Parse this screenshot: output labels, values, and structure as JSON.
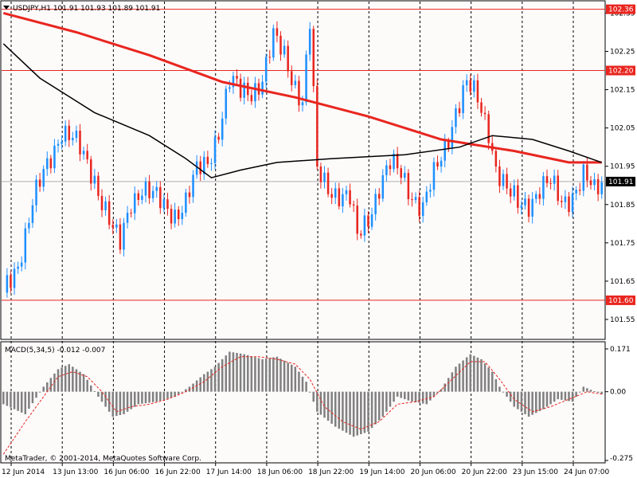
{
  "header": {
    "symbol_line": "USDJPY,H1  101.91 101.93 101.89 101.91"
  },
  "macd": {
    "label": "MACD(5,34,5) -0.012 -0.007",
    "scale": [
      "0.171",
      "0.00",
      "-0.275"
    ]
  },
  "copyright": "MetaTrader, © 2001-2014, MetaQuotes Software Corp.",
  "colors": {
    "background": "#fdfafa",
    "bull_candle": "#1e90ff",
    "bear_candle": "#e8261f",
    "ma_slow": "#e8261f",
    "ma_fast": "#000000",
    "level_line": "#e8261f",
    "histogram": "#808080",
    "signal": "#e8261f"
  },
  "chart_data": {
    "type": "candlestick",
    "symbol": "USDJPY",
    "timeframe": "H1",
    "price_axis": [
      "102.35",
      "102.25",
      "102.15",
      "102.05",
      "101.95",
      "101.85",
      "101.75",
      "101.65",
      "101.55"
    ],
    "price_range": [
      101.5,
      102.38
    ],
    "current_price": "101.91",
    "levels": [
      {
        "label": "102.36",
        "price": 102.36
      },
      {
        "label": "102.20",
        "price": 102.2
      },
      {
        "label": "101.60",
        "price": 101.6
      }
    ],
    "x_labels": [
      "12 Jun 2014",
      "13 Jun 13:00",
      "16 Jun 06:00",
      "16 Jun 22:00",
      "17 Jun 14:00",
      "18 Jun 06:00",
      "18 Jun 22:00",
      "19 Jun 14:00",
      "20 Jun 06:00",
      "20 Jun 22:00",
      "23 Jun 15:00",
      "24 Jun 07:00"
    ],
    "close_path": [
      [
        0,
        101.62
      ],
      [
        4,
        101.7
      ],
      [
        8,
        101.85
      ],
      [
        12,
        101.95
      ],
      [
        16,
        102.05
      ],
      [
        19,
        102.02
      ],
      [
        22,
        101.97
      ],
      [
        25,
        101.92
      ],
      [
        28,
        101.84
      ],
      [
        30,
        101.78
      ],
      [
        32,
        101.74
      ],
      [
        35,
        101.86
      ],
      [
        38,
        101.9
      ],
      [
        41,
        101.87
      ],
      [
        44,
        101.84
      ],
      [
        47,
        101.83
      ],
      [
        50,
        101.86
      ],
      [
        53,
        101.93
      ],
      [
        56,
        101.96
      ],
      [
        59,
        102.05
      ],
      [
        62,
        102.17
      ],
      [
        65,
        102.14
      ],
      [
        68,
        102.15
      ],
      [
        71,
        102.18
      ],
      [
        74,
        102.28
      ],
      [
        77,
        102.24
      ],
      [
        79,
        102.19
      ],
      [
        82,
        102.12
      ],
      [
        84,
        102.32
      ],
      [
        86,
        101.93
      ],
      [
        89,
        101.9
      ],
      [
        92,
        101.88
      ],
      [
        95,
        101.86
      ],
      [
        97,
        101.76
      ],
      [
        100,
        101.82
      ],
      [
        103,
        101.9
      ],
      [
        106,
        101.95
      ],
      [
        109,
        101.93
      ],
      [
        112,
        101.88
      ],
      [
        115,
        101.84
      ],
      [
        118,
        101.92
      ],
      [
        121,
        102.0
      ],
      [
        124,
        102.1
      ],
      [
        127,
        102.16
      ],
      [
        130,
        102.12
      ],
      [
        133,
        102.05
      ],
      [
        135,
        101.95
      ],
      [
        138,
        101.88
      ],
      [
        141,
        101.85
      ],
      [
        144,
        101.86
      ],
      [
        147,
        101.89
      ],
      [
        150,
        101.9
      ],
      [
        153,
        101.86
      ],
      [
        156,
        101.88
      ],
      [
        159,
        101.92
      ],
      [
        162,
        101.88
      ],
      [
        164,
        101.91
      ]
    ],
    "ma_slow_path": [
      [
        0,
        102.35
      ],
      [
        20,
        102.3
      ],
      [
        40,
        102.24
      ],
      [
        60,
        102.17
      ],
      [
        80,
        102.13
      ],
      [
        100,
        102.08
      ],
      [
        120,
        102.02
      ],
      [
        140,
        101.99
      ],
      [
        155,
        101.96
      ],
      [
        164,
        101.96
      ]
    ],
    "ma_fast_path": [
      [
        0,
        102.27
      ],
      [
        10,
        102.18
      ],
      [
        25,
        102.09
      ],
      [
        40,
        102.03
      ],
      [
        50,
        101.97
      ],
      [
        57,
        101.92
      ],
      [
        65,
        101.94
      ],
      [
        75,
        101.96
      ],
      [
        90,
        101.97
      ],
      [
        110,
        101.98
      ],
      [
        125,
        102.0
      ],
      [
        134,
        102.03
      ],
      [
        145,
        102.02
      ],
      [
        155,
        101.99
      ],
      [
        164,
        101.96
      ]
    ],
    "macd_range": [
      -0.275,
      0.171
    ],
    "macd_hist": [
      [
        0,
        -0.05
      ],
      [
        6,
        -0.09
      ],
      [
        11,
        0.02
      ],
      [
        15,
        0.09
      ],
      [
        18,
        0.11
      ],
      [
        22,
        0.07
      ],
      [
        26,
        -0.02
      ],
      [
        30,
        -0.1
      ],
      [
        33,
        -0.09
      ],
      [
        37,
        -0.05
      ],
      [
        42,
        -0.04
      ],
      [
        47,
        -0.02
      ],
      [
        51,
        0.02
      ],
      [
        55,
        0.07
      ],
      [
        58,
        0.1
      ],
      [
        62,
        0.16
      ],
      [
        66,
        0.15
      ],
      [
        71,
        0.13
      ],
      [
        75,
        0.14
      ],
      [
        80,
        0.1
      ],
      [
        83,
        0.04
      ],
      [
        86,
        -0.08
      ],
      [
        91,
        -0.14
      ],
      [
        96,
        -0.18
      ],
      [
        100,
        -0.16
      ],
      [
        104,
        -0.1
      ],
      [
        108,
        -0.02
      ],
      [
        112,
        -0.04
      ],
      [
        116,
        -0.05
      ],
      [
        120,
        0.01
      ],
      [
        124,
        0.1
      ],
      [
        128,
        0.15
      ],
      [
        131,
        0.13
      ],
      [
        134,
        0.08
      ],
      [
        136,
        0.02
      ],
      [
        140,
        -0.06
      ],
      [
        144,
        -0.1
      ],
      [
        148,
        -0.07
      ],
      [
        152,
        -0.03
      ],
      [
        156,
        -0.04
      ],
      [
        159,
        0.02
      ],
      [
        164,
        -0.01
      ]
    ],
    "macd_signal": [
      [
        0,
        -0.25
      ],
      [
        6,
        -0.12
      ],
      [
        11,
        -0.02
      ],
      [
        15,
        0.06
      ],
      [
        19,
        0.08
      ],
      [
        23,
        0.06
      ],
      [
        27,
        0.0
      ],
      [
        31,
        -0.08
      ],
      [
        35,
        -0.06
      ],
      [
        40,
        -0.05
      ],
      [
        45,
        -0.03
      ],
      [
        50,
        0.0
      ],
      [
        55,
        0.04
      ],
      [
        60,
        0.1
      ],
      [
        65,
        0.14
      ],
      [
        70,
        0.14
      ],
      [
        75,
        0.13
      ],
      [
        80,
        0.11
      ],
      [
        84,
        0.05
      ],
      [
        88,
        -0.06
      ],
      [
        93,
        -0.12
      ],
      [
        98,
        -0.15
      ],
      [
        103,
        -0.12
      ],
      [
        108,
        -0.05
      ],
      [
        113,
        -0.04
      ],
      [
        118,
        -0.02
      ],
      [
        123,
        0.05
      ],
      [
        128,
        0.12
      ],
      [
        132,
        0.12
      ],
      [
        136,
        0.05
      ],
      [
        140,
        -0.03
      ],
      [
        145,
        -0.08
      ],
      [
        150,
        -0.06
      ],
      [
        155,
        -0.03
      ],
      [
        160,
        0.0
      ],
      [
        164,
        -0.01
      ]
    ]
  }
}
